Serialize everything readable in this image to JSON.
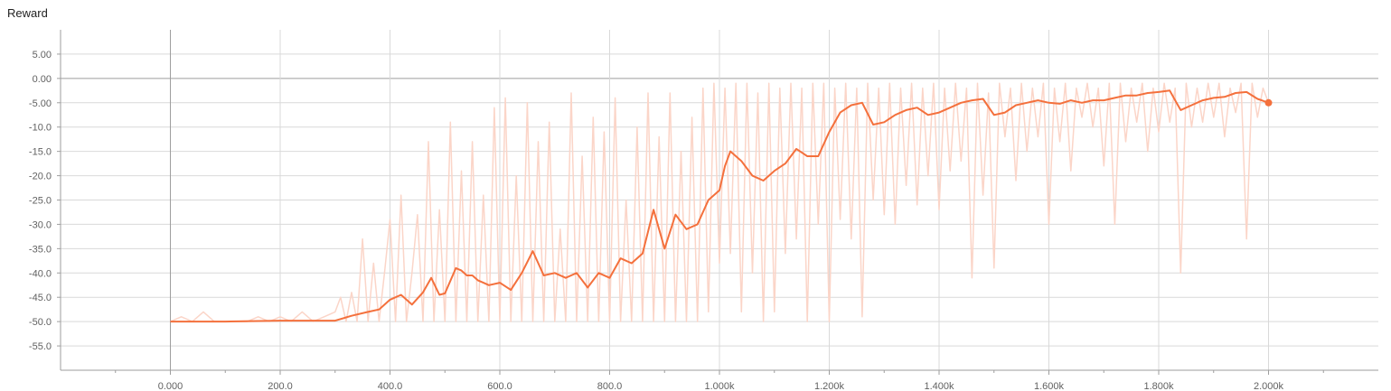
{
  "chart_data": {
    "type": "line",
    "title": "Reward",
    "xlabel": "",
    "ylabel": "",
    "xlim": [
      -200,
      2200
    ],
    "ylim": [
      -60,
      10
    ],
    "x_ticks": [
      0,
      200,
      400,
      600,
      800,
      1000,
      1200,
      1400,
      1600,
      1800,
      2000
    ],
    "x_tick_labels": [
      "0.000",
      "200.0",
      "400.0",
      "600.0",
      "800.0",
      "1.000k",
      "1.200k",
      "1.400k",
      "1.600k",
      "1.800k",
      "2.000k"
    ],
    "y_ticks": [
      5,
      0,
      -5,
      -10,
      -15,
      -20,
      -25,
      -30,
      -35,
      -40,
      -45,
      -50,
      -55
    ],
    "y_tick_labels": [
      "5.00",
      "0.00",
      "-5.00",
      "-10.0",
      "-15.0",
      "-20.0",
      "-25.0",
      "-30.0",
      "-35.0",
      "-40.0",
      "-45.0",
      "-50.0",
      "-55.0"
    ],
    "grid": true,
    "colors": {
      "smoothed": "#f4703c",
      "raw": "#fbd5c8",
      "grid": "#d9d9d9",
      "axis": "#9e9e9e"
    },
    "series": [
      {
        "role": "smoothed",
        "x": [
          0,
          100,
          200,
          250,
          300,
          330,
          360,
          380,
          400,
          420,
          440,
          460,
          475,
          490,
          500,
          520,
          530,
          540,
          550,
          560,
          570,
          580,
          600,
          620,
          640,
          660,
          680,
          700,
          720,
          740,
          760,
          780,
          800,
          820,
          840,
          860,
          880,
          900,
          920,
          940,
          960,
          980,
          1000,
          1010,
          1020,
          1040,
          1060,
          1080,
          1100,
          1120,
          1140,
          1160,
          1180,
          1200,
          1220,
          1240,
          1260,
          1280,
          1300,
          1320,
          1340,
          1360,
          1380,
          1400,
          1420,
          1440,
          1460,
          1480,
          1500,
          1520,
          1540,
          1560,
          1580,
          1600,
          1620,
          1640,
          1660,
          1680,
          1700,
          1720,
          1740,
          1760,
          1780,
          1800,
          1820,
          1830,
          1840,
          1860,
          1880,
          1900,
          1920,
          1940,
          1960,
          1980,
          2000
        ],
        "y": [
          -50,
          -50,
          -49.8,
          -49.8,
          -49.8,
          -48.8,
          -48.0,
          -47.5,
          -45.5,
          -44.5,
          -46.5,
          -44.0,
          -41.0,
          -44.5,
          -44.2,
          -39.0,
          -39.5,
          -40.5,
          -40.5,
          -41.5,
          -42.0,
          -42.5,
          -42.0,
          -43.5,
          -40.0,
          -35.5,
          -40.5,
          -40.0,
          -41.0,
          -40.0,
          -43.0,
          -40.0,
          -41.0,
          -37.0,
          -38.0,
          -36.0,
          -27.0,
          -35.0,
          -28.0,
          -31.0,
          -30.0,
          -25.0,
          -23.0,
          -18.0,
          -15.0,
          -17.0,
          -20.0,
          -21.0,
          -19.0,
          -17.5,
          -14.5,
          -16.0,
          -16.0,
          -11.0,
          -7.0,
          -5.5,
          -5.0,
          -9.5,
          -9.0,
          -7.5,
          -6.5,
          -6.0,
          -7.5,
          -7.0,
          -6.0,
          -5.0,
          -4.5,
          -4.2,
          -7.5,
          -7.0,
          -5.5,
          -5.0,
          -4.5,
          -5.0,
          -5.2,
          -4.5,
          -5.0,
          -4.5,
          -4.5,
          -4.0,
          -3.5,
          -3.5,
          -3.0,
          -2.8,
          -2.5,
          -4.5,
          -6.5,
          -5.5,
          -4.5,
          -4.0,
          -3.8,
          -3.0,
          -2.8,
          -4.2,
          -5.0
        ]
      },
      {
        "role": "raw",
        "x": [
          0,
          20,
          40,
          60,
          80,
          100,
          120,
          140,
          160,
          180,
          200,
          220,
          240,
          260,
          280,
          300,
          310,
          320,
          330,
          340,
          350,
          360,
          370,
          380,
          390,
          400,
          410,
          420,
          430,
          440,
          450,
          460,
          470,
          480,
          490,
          500,
          510,
          520,
          530,
          540,
          550,
          560,
          570,
          580,
          590,
          600,
          610,
          620,
          630,
          640,
          650,
          660,
          670,
          680,
          690,
          700,
          710,
          720,
          730,
          740,
          750,
          760,
          770,
          780,
          790,
          800,
          810,
          820,
          830,
          840,
          850,
          860,
          870,
          880,
          890,
          900,
          910,
          920,
          930,
          940,
          950,
          960,
          970,
          980,
          990,
          1000,
          1010,
          1020,
          1030,
          1040,
          1050,
          1060,
          1070,
          1080,
          1090,
          1100,
          1110,
          1120,
          1130,
          1140,
          1150,
          1160,
          1170,
          1180,
          1190,
          1200,
          1210,
          1220,
          1230,
          1240,
          1250,
          1260,
          1270,
          1280,
          1290,
          1300,
          1310,
          1320,
          1330,
          1340,
          1350,
          1360,
          1370,
          1380,
          1390,
          1400,
          1410,
          1420,
          1430,
          1440,
          1450,
          1460,
          1470,
          1480,
          1490,
          1500,
          1510,
          1520,
          1530,
          1540,
          1550,
          1560,
          1570,
          1580,
          1590,
          1600,
          1610,
          1620,
          1630,
          1640,
          1650,
          1660,
          1670,
          1680,
          1690,
          1700,
          1710,
          1720,
          1730,
          1740,
          1750,
          1760,
          1770,
          1780,
          1790,
          1800,
          1810,
          1820,
          1830,
          1840,
          1850,
          1860,
          1870,
          1880,
          1890,
          1900,
          1910,
          1920,
          1930,
          1940,
          1950,
          1960,
          1970,
          1980,
          1990,
          2000
        ],
        "y": [
          -50,
          -49,
          -50,
          -48,
          -50,
          -50,
          -50,
          -50,
          -49,
          -50,
          -49,
          -50,
          -48,
          -50,
          -49,
          -48,
          -45,
          -50,
          -44,
          -50,
          -33,
          -50,
          -38,
          -50,
          -40,
          -29,
          -50,
          -24,
          -50,
          -40,
          -28,
          -50,
          -13,
          -50,
          -27,
          -50,
          -9,
          -50,
          -19,
          -50,
          -13,
          -50,
          -24,
          -50,
          -6,
          -50,
          -4,
          -50,
          -20,
          -50,
          -5,
          -50,
          -13,
          -50,
          -9,
          -50,
          -31,
          -50,
          -3,
          -50,
          -16,
          -50,
          -8,
          -50,
          -11,
          -50,
          -4,
          -50,
          -25,
          -50,
          -10,
          -50,
          -3,
          -50,
          -12,
          -50,
          -3,
          -50,
          -15,
          -50,
          -8,
          -50,
          -2,
          -48,
          -1,
          -38,
          -2,
          -36,
          -1,
          -48,
          -1,
          -40,
          -3,
          -50,
          -1,
          -48,
          -2,
          -36,
          -1,
          -33,
          -2,
          -50,
          -1,
          -30,
          -1,
          -50,
          -2,
          -29,
          -1,
          -33,
          -2,
          -49,
          -1,
          -25,
          -2,
          -28,
          -1,
          -30,
          -2,
          -22,
          -1,
          -26,
          -2,
          -20,
          -1,
          -27,
          -2,
          -19,
          -1,
          -17,
          -2,
          -41,
          -1,
          -24,
          -3,
          -39,
          -1,
          -12,
          -2,
          -21,
          -1,
          -15,
          -2,
          -12,
          -1,
          -30,
          -2,
          -13,
          -1,
          -19,
          -2,
          -8,
          -1,
          -10,
          -2,
          -18,
          -1,
          -30,
          -1,
          -13,
          -2,
          -9,
          -1,
          -15,
          -2,
          -11,
          -1,
          -9,
          -2,
          -40,
          -1,
          -10,
          -2,
          -9,
          -1,
          -8,
          -1,
          -12,
          -2,
          -7,
          -1,
          -33,
          -1,
          -8,
          -2,
          -5
        ]
      }
    ]
  }
}
